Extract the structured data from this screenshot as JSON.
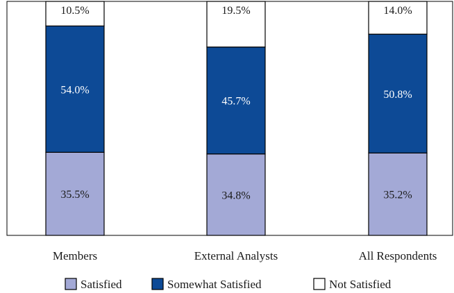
{
  "chart_data": {
    "type": "bar",
    "stacked": true,
    "orientation": "vertical",
    "categories": [
      "Members",
      "External Analysts",
      "All Respondents"
    ],
    "series": [
      {
        "name": "Satisfied",
        "values": [
          35.5,
          34.8,
          35.2
        ],
        "labels": [
          "35.5%",
          "34.8%",
          "35.2%"
        ],
        "color": "#a3a9d6",
        "label_color": "#1a1a1a"
      },
      {
        "name": "Somewhat Satisfied",
        "values": [
          54.0,
          45.7,
          50.8
        ],
        "labels": [
          "54.0%",
          "45.7%",
          "50.8%"
        ],
        "color": "#0d4a96",
        "label_color": "#ffffff"
      },
      {
        "name": "Not Satisfied",
        "values": [
          10.5,
          19.5,
          14.0
        ],
        "labels": [
          "10.5%",
          "19.5%",
          "14.0%"
        ],
        "color": "#ffffff",
        "label_color": "#1a1a1a"
      }
    ],
    "ylim": [
      0,
      100
    ],
    "grid": false,
    "legend_position": "bottom",
    "title": "",
    "xlabel": "",
    "ylabel": ""
  }
}
